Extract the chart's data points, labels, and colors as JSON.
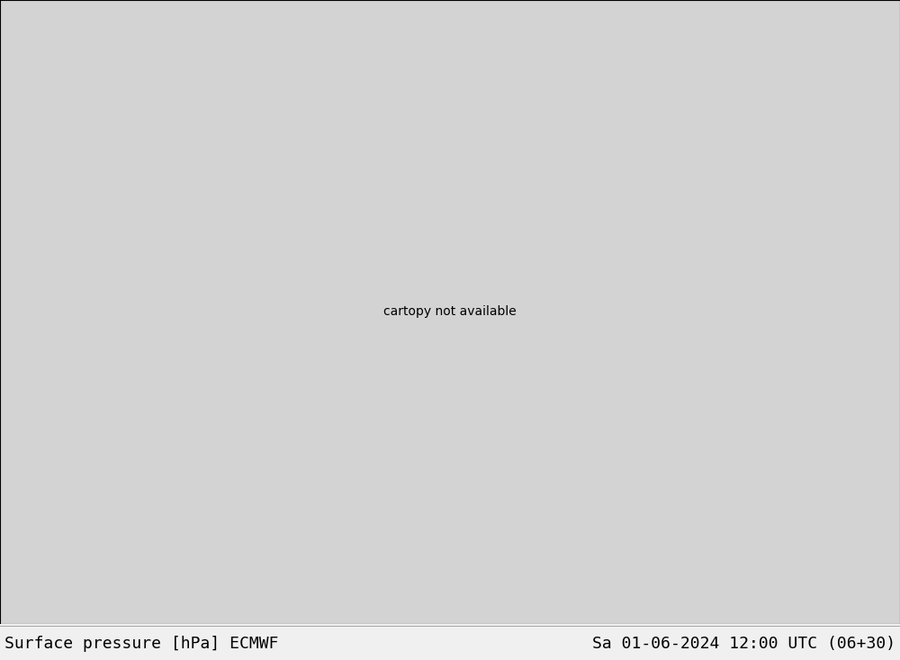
{
  "title_left": "Surface pressure [hPa] ECMWF",
  "title_right": "Sa 01-06-2024 12:00 UTC (06+30)",
  "title_fontsize": 13,
  "title_color": "#000000",
  "background_color": "#f0f0f0",
  "figsize": [
    10.0,
    7.33
  ],
  "dpi": 100,
  "bottom_bar_height": 0.055,
  "land_color": "#b5d99c",
  "ocean_color": "#d3d3d3",
  "lake_color": "#d3d3d3",
  "border_color": "#808080",
  "coast_color": "#404040",
  "state_color": "#808080",
  "contour_blue": "#0000ff",
  "contour_red": "#ff0000",
  "contour_black": "#000000",
  "lw_blue": 0.7,
  "lw_red": 0.7,
  "lw_black": 1.5,
  "label_fontsize_small": 6.0,
  "label_fontsize_black": 7.0,
  "extent": [
    -145,
    -55,
    18,
    75
  ],
  "projection_lon": -100,
  "projection_lat": 45
}
